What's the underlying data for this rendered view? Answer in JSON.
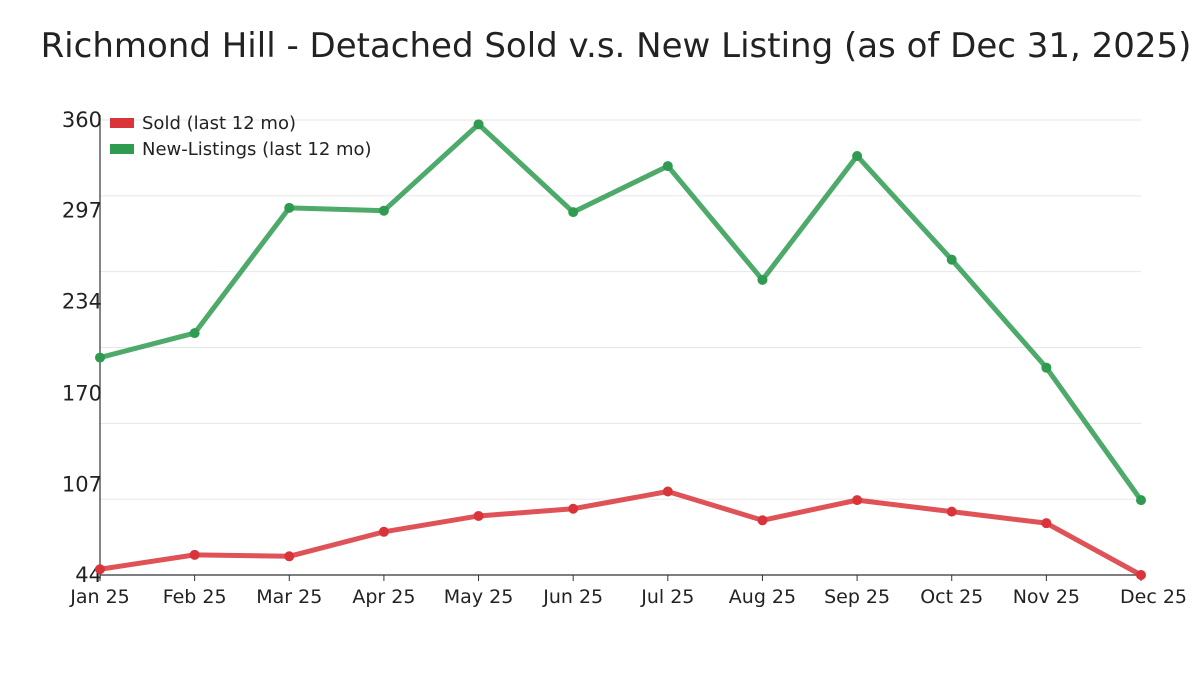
{
  "chart_data": {
    "type": "line",
    "title": "Richmond Hill - Detached Sold v.s. New Listing (as of Dec 31, 2025)",
    "xlabel": "",
    "ylabel": "",
    "categories": [
      "Jan 25",
      "Feb 25",
      "Mar 25",
      "Apr 25",
      "May 25",
      "Jun 25",
      "Jul 25",
      "Aug 25",
      "Sep 25",
      "Oct 25",
      "Nov 25",
      "Dec 25"
    ],
    "ylim": [
      44,
      360
    ],
    "y_ticks": [
      44,
      107,
      170,
      234,
      297,
      360
    ],
    "grid": true,
    "legend_position": "top-left",
    "series": [
      {
        "name": "Sold (last 12 mo)",
        "color": "#d9343a",
        "values": [
          48,
          58,
          57,
          74,
          85,
          90,
          102,
          82,
          96,
          88,
          80,
          44
        ]
      },
      {
        "name": "New-Listings (last 12 mo)",
        "color": "#2e9b50",
        "values": [
          195,
          212,
          299,
          297,
          357,
          296,
          328,
          249,
          335,
          263,
          188,
          96
        ]
      }
    ]
  }
}
